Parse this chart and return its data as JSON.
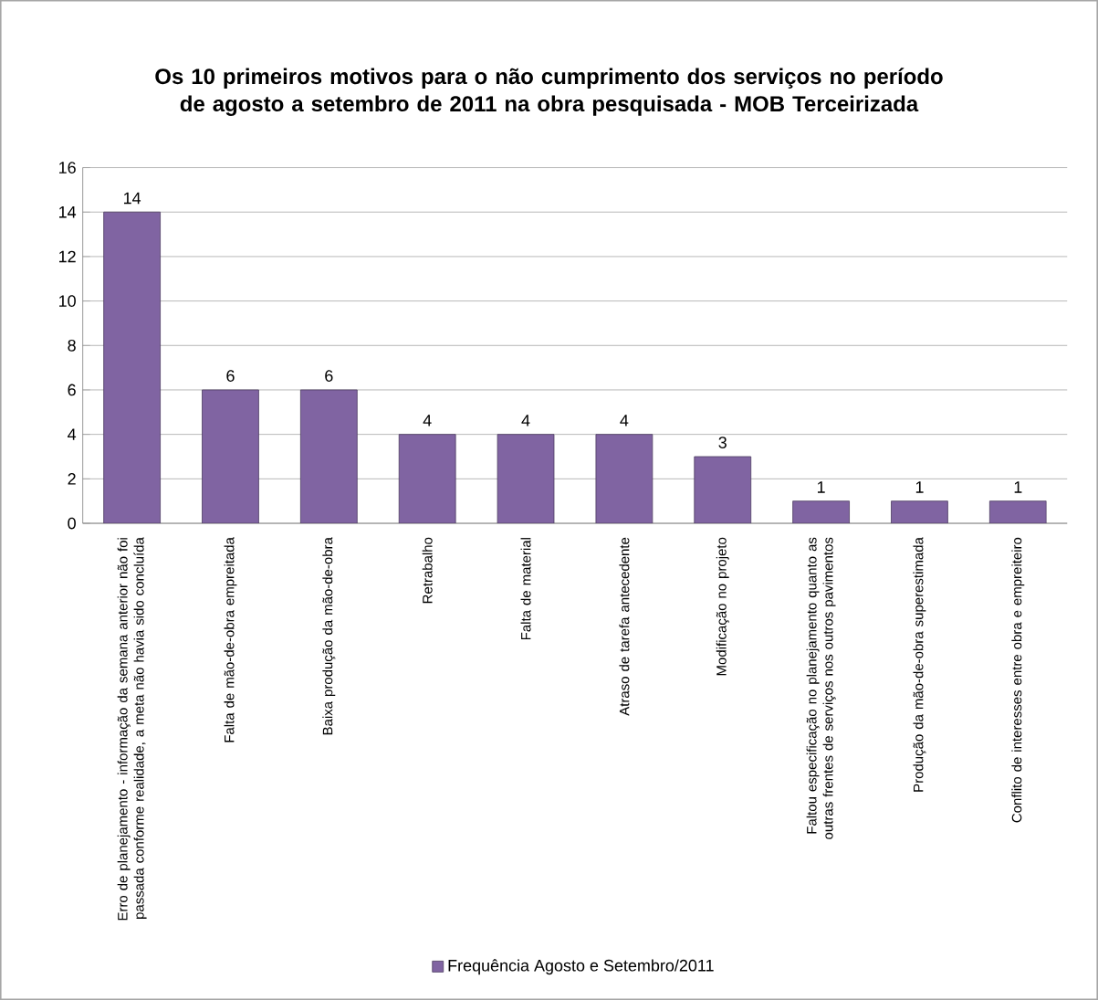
{
  "chart_data": {
    "type": "bar",
    "title": "Os 10 primeiros motivos para o não cumprimento dos serviços no período de agosto a setembro de 2011 na obra pesquisada - MOB Terceirizada",
    "categories": [
      "Erro de planejamento - informação da semana anterior não foi passada conforme realidade, a meta não havia sido concluída",
      "Falta de mão-de-obra empreitada",
      "Baixa produção da mão-de-obra",
      "Retrabalho",
      "Falta de material",
      "Atraso de tarefa antecedente",
      "Modificação no projeto",
      "Faltou especificação no planejamento quanto as outras frentes de serviços nos outros pavimentos",
      "Produção da mão-de-obra superestimada",
      "Conflito de interesses entre obra e empreiteiro"
    ],
    "series": [
      {
        "name": "Frequência Agosto e Setembro/2011",
        "color": "#8064a2",
        "values": [
          14,
          6,
          6,
          4,
          4,
          4,
          3,
          1,
          1,
          1
        ]
      }
    ],
    "ylim": [
      0,
      16
    ],
    "yticks": [
      0,
      2,
      4,
      6,
      8,
      10,
      12,
      14,
      16
    ],
    "grid": "y",
    "legend": "bottom",
    "data_labels": true
  }
}
